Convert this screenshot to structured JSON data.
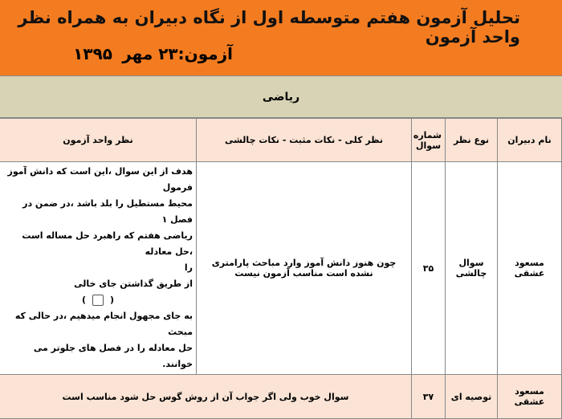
{
  "header": {
    "title": "تحلیل آزمون هفتم متوسطه اول از نگاه دبیران به همراه نظر واحد آزمون",
    "date": "آزمون:۲۳ مهر",
    "year": "۱۳۹۵"
  },
  "subject": "ریاضی",
  "table": {
    "columns": [
      "نام دبیران",
      "نوع نظر",
      "شماره سوال",
      "نظر کلی - نکات مثبت - نکات چالشی",
      "نظر واحد آزمون"
    ],
    "rows": [
      {
        "name": "مسعود عشقی",
        "type": "سوال چالشی",
        "number": "۳۵",
        "general": "چون هنوز دانش آموز وارد مباحث پارامتری نشده است مناسب آزمون نیست",
        "unit_lines": [
          "هدف از این سوال ،این است که دانش آموز فرمول",
          "محیط مستطیل را بلد باشد ،در ضمن در فصل ۱",
          "ریاضی هفتم که راهبرد حل مساله است ،حل معادله",
          "را",
          "از طریق گذاشتن جای خالی"
        ],
        "box_open": "(",
        "box_close": ")",
        "unit_lines_after": [
          "به جای مجهول انجام میدهیم ،در حالی که مبحث",
          "حل معادله را در فصل های جلوتر می خوانند."
        ]
      },
      {
        "name": "مسعود عشقی",
        "type": "توصیه ای",
        "number": "۳۷",
        "merged": "سوال خوب ولی اگر جواب آن از روش گوس حل شود مناسب است"
      }
    ]
  }
}
